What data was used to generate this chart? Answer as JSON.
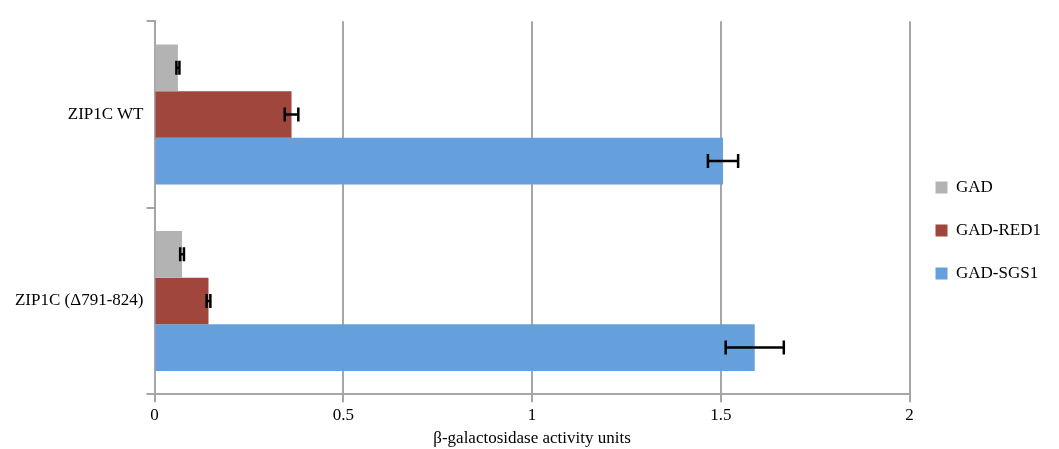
{
  "chart_data": {
    "type": "bar",
    "orientation": "horizontal",
    "xlabel": "β-galactosidase activity units",
    "categories": [
      "ZIP1C WT",
      "ZIP1C (Δ791-824)"
    ],
    "series": [
      {
        "name": "GAD",
        "color": "#b3b3b3",
        "values": [
          0.062,
          0.073
        ],
        "errors": [
          0.004,
          0.005
        ]
      },
      {
        "name": "GAD-RED1",
        "color": "#a0463c",
        "values": [
          0.363,
          0.143
        ],
        "errors": [
          0.018,
          0.005
        ]
      },
      {
        "name": "GAD-SGS1",
        "color": "#659fdc",
        "values": [
          1.506,
          1.59
        ],
        "errors": [
          0.04,
          0.077
        ]
      }
    ],
    "xlim": [
      0,
      2
    ],
    "xticks": [
      0,
      0.5,
      1,
      1.5,
      2
    ],
    "grid": "x",
    "legend": "right"
  }
}
